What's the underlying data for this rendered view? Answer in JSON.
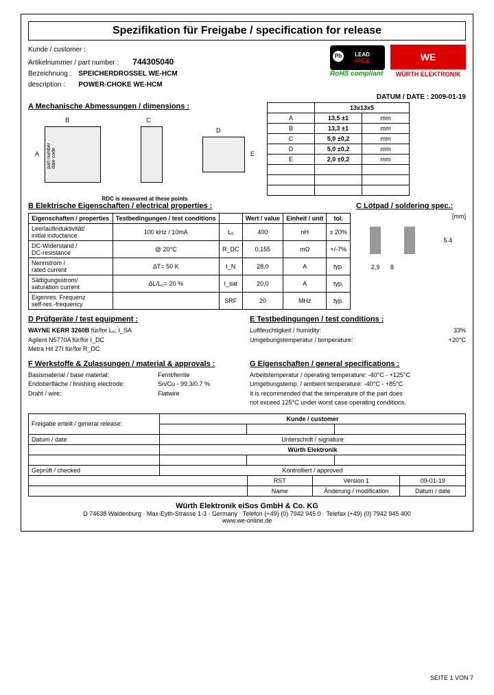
{
  "title": "Spezifikation für Freigabe / specification for release",
  "customer_lbl": "Kunde / customer :",
  "pn_lbl": "Artikelnummer / part number :",
  "pn": "744305040",
  "desc_lbl": "Bezeichnung :\ndescription :",
  "desc1": "SPEICHERDROSSEL WE-HCM",
  "desc2": "POWER-CHOKE WE-HCM",
  "leadfree_top": "LEAD",
  "leadfree_bot": "FREE",
  "rohs": "RoHS compliant",
  "we": "WE",
  "we_sub": "WÜRTH ELEKTRONIK",
  "date_lbl": "DATUM / DATE :",
  "date": "2009-01-19",
  "a_hdr": "A  Mechanische Abmessungen / dimensions :",
  "rdc_note": "RDC is  measured at these points",
  "dim_title": "13x13x5",
  "dims": [
    [
      "A",
      "13,5 ±1",
      "mm"
    ],
    [
      "B",
      "13,3 ±1",
      "mm"
    ],
    [
      "C",
      "5,0 ±0,2",
      "mm"
    ],
    [
      "D",
      "5,0 ±0,2",
      "mm"
    ],
    [
      "E",
      "2,0 ±0,2",
      "mm"
    ]
  ],
  "b_hdr": "B  Elektrische Eigenschaften  /  electrical properties :",
  "b_cols": [
    "Eigenschaften / properties",
    "Testbedingungen / test conditions",
    "",
    "Wert / value",
    "Einheit / unit",
    "tol."
  ],
  "b_rows": [
    [
      "Leerlaufinduktivität/\ninitial inductance",
      "100 kHz / 10mA",
      "L₀",
      "400",
      "nH",
      "± 20%"
    ],
    [
      "DC-Widerstand /\nDC-resistance",
      "@ 20°C",
      "R_DC",
      "0,155",
      "mΩ",
      "+/-7%"
    ],
    [
      "Nennstrom /\nrated current",
      "ΔT= 50 K",
      "I_N",
      "28,0",
      "A",
      "typ."
    ],
    [
      "Sättigungsstrom/\nsaturation current",
      "ΔL/L₀= 20 %",
      "I_sat",
      "20,0",
      "A",
      "typ."
    ],
    [
      "Eigenres. Frequenz\nself-res.-frequency",
      "",
      "SRF",
      "20",
      "MHz",
      "typ."
    ]
  ],
  "c_hdr": "C  Lötpad /  soldering spec.:",
  "c_unit": "[mm]",
  "c_dims": {
    "w": "2,9",
    "gap": "8",
    "h": "5.4"
  },
  "d_hdr": "D  Prüfgeräte /  test equipment :",
  "d_rows": [
    "<b>WAYNE KERR 3260B</b> für/for L₀; I_SA",
    "Agilent N5770A für/for I_DC",
    "Metra Hit 27I für/for R_DC"
  ],
  "e_hdr": "E  Testbedingungen / test conditions :",
  "e_rows": [
    [
      "Luftfeuchtigkeit / humidity:",
      "33%"
    ],
    [
      "Umgebungstemperatur / temperature:",
      "+20°C"
    ]
  ],
  "f_hdr": "F  Werkstoffe & Zulassungen / material & approvals :",
  "f_rows": [
    [
      "Basismaterial / base material:",
      "Ferrit/ferrite"
    ],
    [
      "Endoberfläche / finishing electrode:",
      "Sn/Cu - 99.3/0.7 %"
    ],
    [
      "Draht / wire:",
      "Flatwire"
    ]
  ],
  "g_hdr": "G  Eigenschaften / general specifications :",
  "g_rows": [
    "Arbeitstemperatur / operating temperature:  -40°C - +125°C",
    "Umgebungstemp. / ambient temperature:  -40°C - +85°C",
    "It is recommended that the temperature of the part does",
    "not exceed 125°C under worst case operating conditions."
  ],
  "rel_lbl": "Freigabe erteilt / general release:",
  "cust_hdr": "Kunde / customer",
  "datum": "Datum / date",
  "sig": "Unterschrift / signature",
  "we_hdr": "Würth Elektronik",
  "checked": "Geprüft / checked",
  "approved": "Kontrolliert / approved",
  "rst": "RST",
  "ver": "Version 1",
  "vdate": "09-01-19",
  "name": "Name",
  "mod": "Änderung / modification",
  "mdate": "Datum / date",
  "company": "Würth Elektronik eiSos GmbH & Co. KG",
  "addr": "D 74638 Waldenburg · Max-Eyth-Strasse 1-3 · Germany · Telefon (+49) (0) 7942  945  0 · Telefax (+49) (0) 7942  945  400",
  "web": "www.we-online.de",
  "pgnum": "SEITE 1 VON 7"
}
